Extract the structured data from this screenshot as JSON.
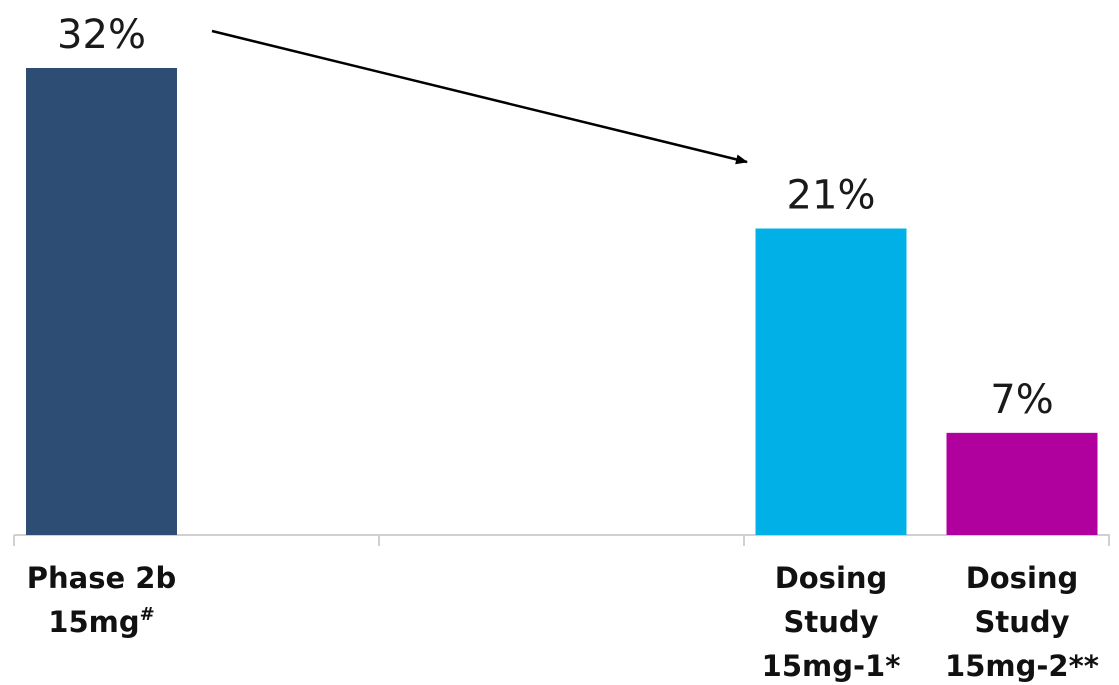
{
  "chart_data": {
    "type": "bar",
    "categories": [
      {
        "lines": [
          "Phase 2b",
          "15mg"
        ],
        "superscript": "#"
      },
      {
        "lines": [],
        "superscript": ""
      },
      {
        "lines": [
          "Dosing",
          "Study",
          "15mg-1*"
        ],
        "superscript": ""
      },
      {
        "lines": [
          "Dosing",
          "Study",
          "15mg-2**"
        ],
        "superscript": ""
      }
    ],
    "values": [
      32,
      null,
      21,
      7
    ],
    "value_labels": [
      "32%",
      "",
      "21%",
      "7%"
    ],
    "colors": [
      "#2e4d74",
      null,
      "#00b0e6",
      "#b0009e"
    ],
    "ylim": [
      0,
      32
    ],
    "title": "",
    "xlabel": "",
    "ylabel": "",
    "grid": false,
    "annotations": [
      {
        "type": "arrow",
        "from_category": 0,
        "to_category": 2,
        "description_text": ""
      }
    ],
    "axis_color": "#d0d0d0",
    "arrow_color": "#000000"
  }
}
